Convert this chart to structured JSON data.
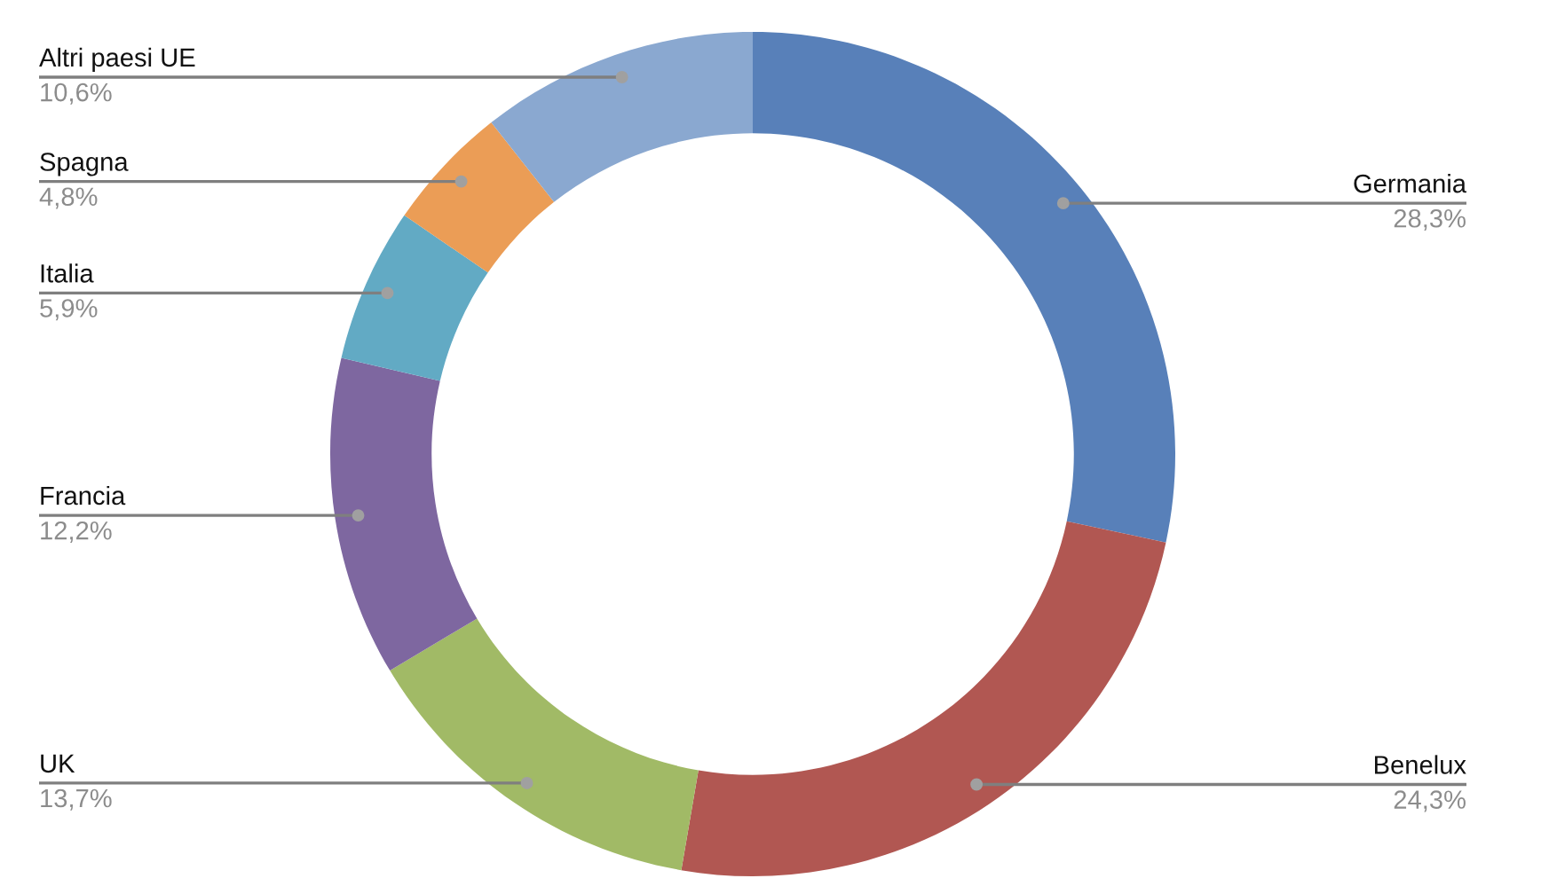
{
  "chart_data": {
    "type": "donut",
    "categories": [
      "Germania",
      "Benelux",
      "UK",
      "Francia",
      "Italia",
      "Spagna",
      "Altri paesi UE"
    ],
    "values": [
      28.3,
      24.3,
      13.7,
      12.2,
      5.9,
      4.8,
      10.6
    ],
    "value_labels": [
      "28,3%",
      "24,3%",
      "13,7%",
      "12,2%",
      "5,9%",
      "4,8%",
      "10,6%"
    ],
    "colors": [
      "#5880b9",
      "#b15752",
      "#a1ba66",
      "#7e67a0",
      "#62aac4",
      "#eb9d56",
      "#8aa8d0"
    ],
    "legend": false
  }
}
